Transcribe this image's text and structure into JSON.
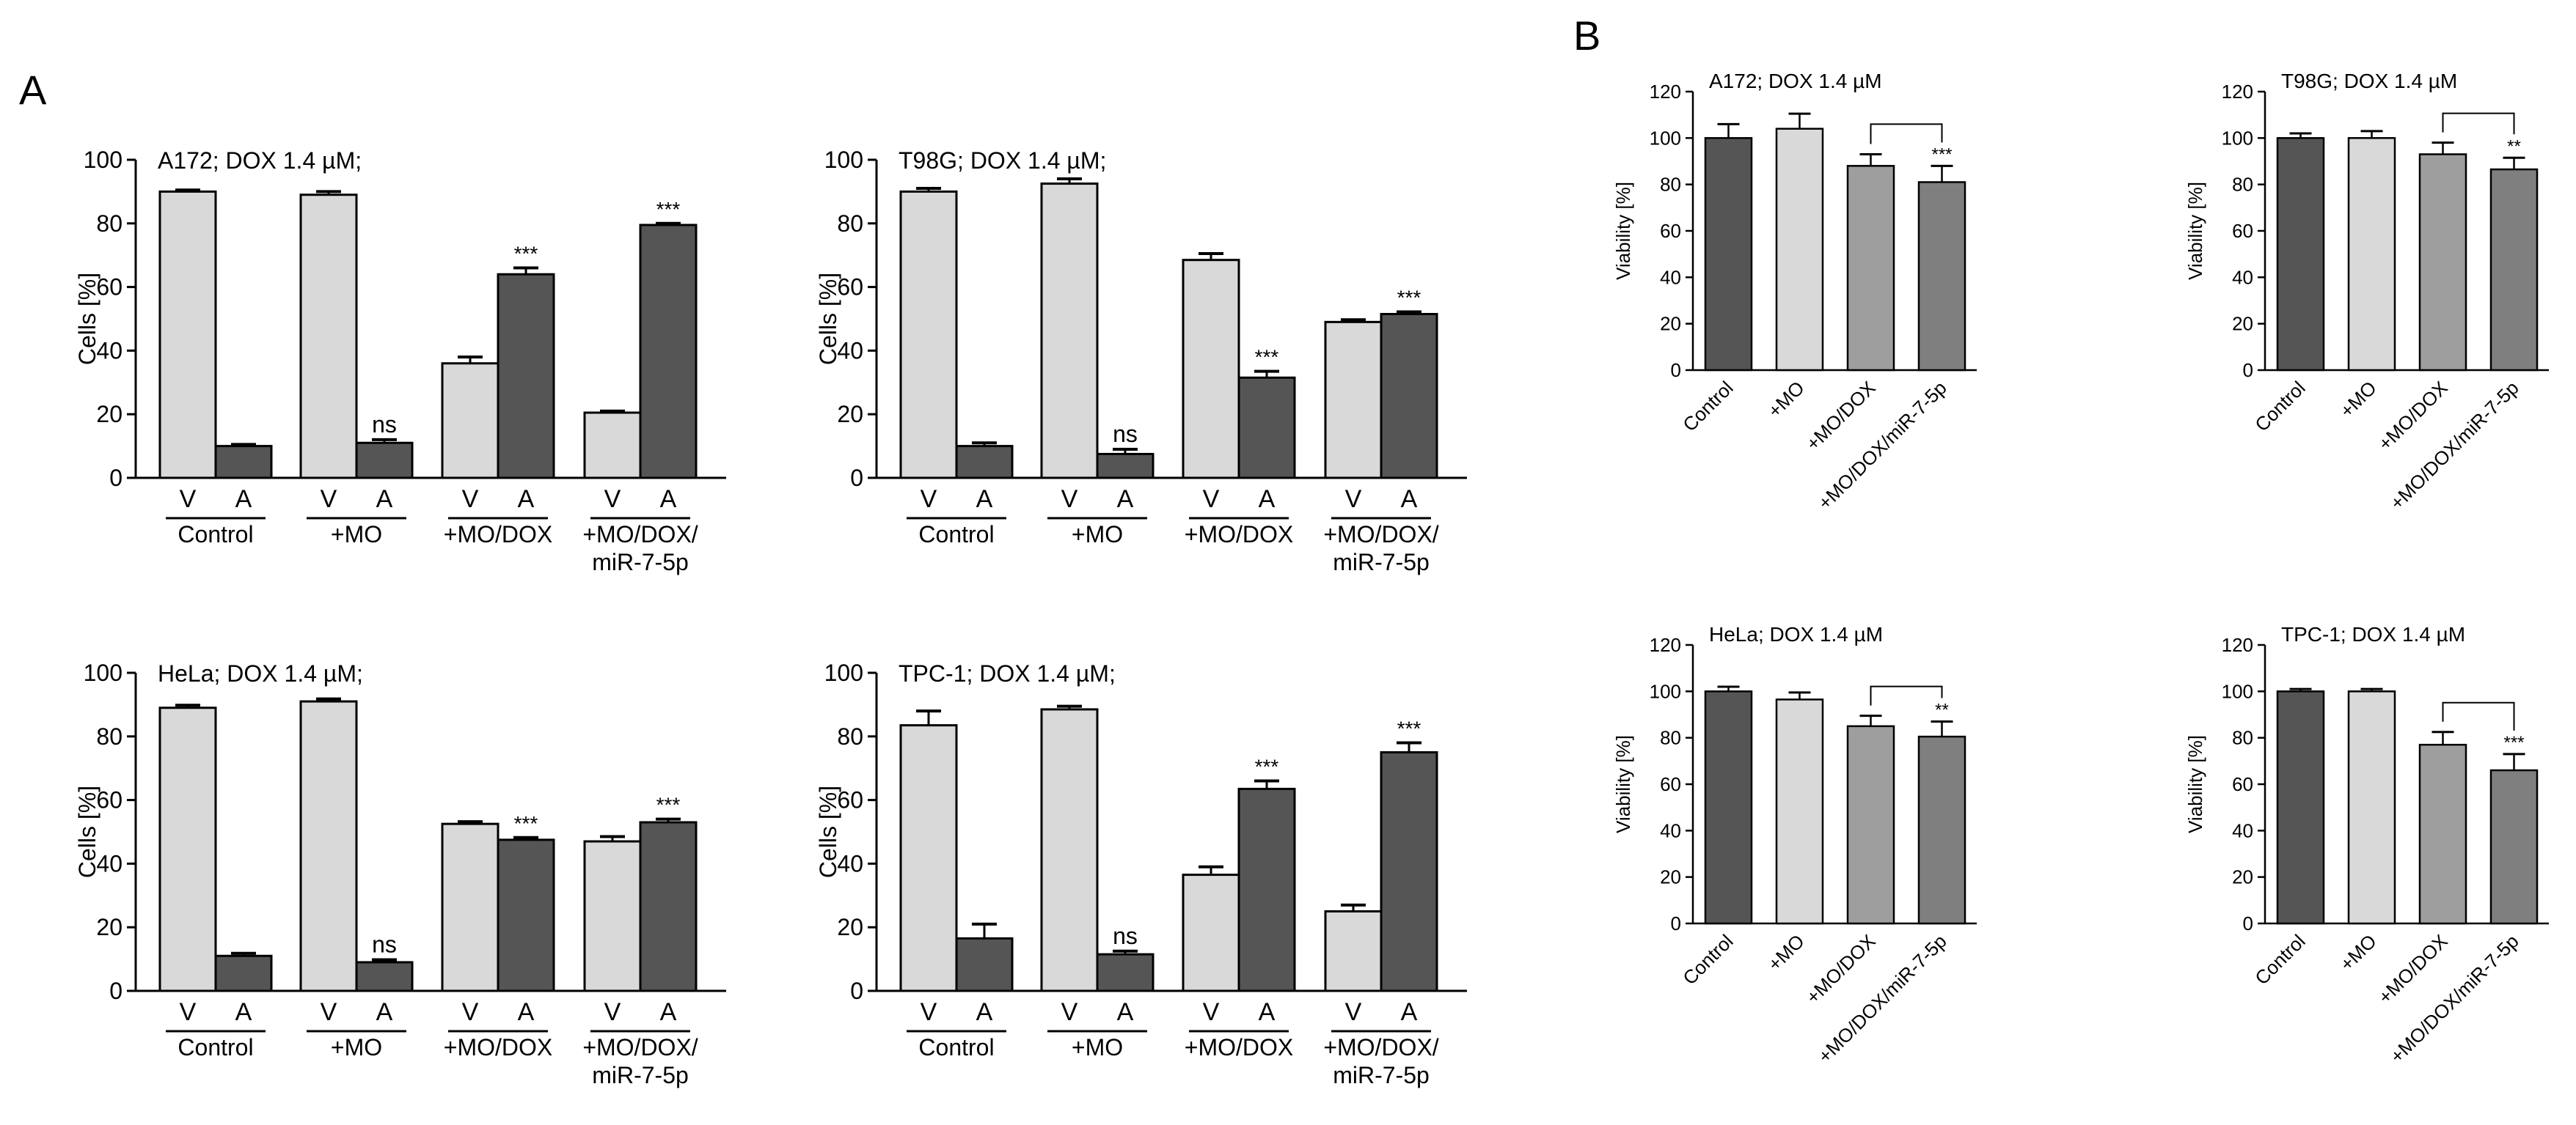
{
  "panel_labels": {
    "A": "A",
    "B": "B"
  },
  "colors": {
    "light": "#d9d9d9",
    "dark": "#555555",
    "viab_control": "#555555",
    "viab_mo": "#d9d9d9",
    "viab_dox": "#9e9e9e",
    "viab_mir": "#7f7f7f"
  },
  "chart_data": [
    {
      "type": "bar",
      "panel": "A",
      "title": "A172; DOX 1.4 µM;",
      "ylabel": "Cells [%]",
      "ylim": [
        0,
        100
      ],
      "yticks": [
        0,
        20,
        40,
        60,
        80,
        100
      ],
      "groups": [
        {
          "label": "Control",
          "bars": [
            {
              "cat": "V",
              "value": 90,
              "err": 0.5,
              "sig": ""
            },
            {
              "cat": "A",
              "value": 10,
              "err": 0.5,
              "sig": ""
            }
          ]
        },
        {
          "label": "+MO",
          "bars": [
            {
              "cat": "V",
              "value": 89,
              "err": 1,
              "sig": ""
            },
            {
              "cat": "A",
              "value": 11,
              "err": 1,
              "sig": "ns"
            }
          ]
        },
        {
          "label": "+MO/DOX",
          "bars": [
            {
              "cat": "V",
              "value": 36,
              "err": 2,
              "sig": ""
            },
            {
              "cat": "A",
              "value": 64,
              "err": 2,
              "sig": "***"
            }
          ]
        },
        {
          "label": "+MO/DOX/ miR-7-5p",
          "bars": [
            {
              "cat": "V",
              "value": 20.5,
              "err": 0.5,
              "sig": ""
            },
            {
              "cat": "A",
              "value": 79.5,
              "err": 0.5,
              "sig": "***"
            }
          ]
        }
      ]
    },
    {
      "type": "bar",
      "panel": "A",
      "title": "T98G; DOX 1.4 µM;",
      "ylabel": "Cells [%]",
      "ylim": [
        0,
        100
      ],
      "yticks": [
        0,
        20,
        40,
        60,
        80,
        100
      ],
      "groups": [
        {
          "label": "Control",
          "bars": [
            {
              "cat": "V",
              "value": 90,
              "err": 1,
              "sig": ""
            },
            {
              "cat": "A",
              "value": 10,
              "err": 1,
              "sig": ""
            }
          ]
        },
        {
          "label": "+MO",
          "bars": [
            {
              "cat": "V",
              "value": 92.5,
              "err": 1.5,
              "sig": ""
            },
            {
              "cat": "A",
              "value": 7.5,
              "err": 1.5,
              "sig": "ns"
            }
          ]
        },
        {
          "label": "+MO/DOX",
          "bars": [
            {
              "cat": "V",
              "value": 68.5,
              "err": 2,
              "sig": ""
            },
            {
              "cat": "A",
              "value": 31.5,
              "err": 2,
              "sig": "***"
            }
          ]
        },
        {
          "label": "+MO/DOX/ miR-7-5p",
          "bars": [
            {
              "cat": "V",
              "value": 49,
              "err": 0.7,
              "sig": ""
            },
            {
              "cat": "A",
              "value": 51.5,
              "err": 0.7,
              "sig": "***"
            }
          ]
        }
      ]
    },
    {
      "type": "bar",
      "panel": "A",
      "title": "HeLa; DOX 1.4 µM;",
      "ylabel": "Cells [%]",
      "ylim": [
        0,
        100
      ],
      "yticks": [
        0,
        20,
        40,
        60,
        80,
        100
      ],
      "groups": [
        {
          "label": "Control",
          "bars": [
            {
              "cat": "V",
              "value": 89,
              "err": 0.8,
              "sig": ""
            },
            {
              "cat": "A",
              "value": 11,
              "err": 0.8,
              "sig": ""
            }
          ]
        },
        {
          "label": "+MO",
          "bars": [
            {
              "cat": "V",
              "value": 91,
              "err": 0.8,
              "sig": ""
            },
            {
              "cat": "A",
              "value": 9,
              "err": 0.8,
              "sig": "ns"
            }
          ]
        },
        {
          "label": "+MO/DOX",
          "bars": [
            {
              "cat": "V",
              "value": 52.5,
              "err": 0.7,
              "sig": ""
            },
            {
              "cat": "A",
              "value": 47.5,
              "err": 0.7,
              "sig": "***"
            }
          ]
        },
        {
          "label": "+MO/DOX/ miR-7-5p",
          "bars": [
            {
              "cat": "V",
              "value": 47,
              "err": 1.5,
              "sig": ""
            },
            {
              "cat": "A",
              "value": 53,
              "err": 1,
              "sig": "***"
            }
          ]
        }
      ]
    },
    {
      "type": "bar",
      "panel": "A",
      "title": "TPC-1; DOX 1.4 µM;",
      "ylabel": "Cells [%]",
      "ylim": [
        0,
        100
      ],
      "yticks": [
        0,
        20,
        40,
        60,
        80,
        100
      ],
      "groups": [
        {
          "label": "Control",
          "bars": [
            {
              "cat": "V",
              "value": 83.5,
              "err": 4.5,
              "sig": ""
            },
            {
              "cat": "A",
              "value": 16.5,
              "err": 4.5,
              "sig": ""
            }
          ]
        },
        {
          "label": "+MO",
          "bars": [
            {
              "cat": "V",
              "value": 88.5,
              "err": 1,
              "sig": ""
            },
            {
              "cat": "A",
              "value": 11.5,
              "err": 1,
              "sig": "ns"
            }
          ]
        },
        {
          "label": "+MO/DOX",
          "bars": [
            {
              "cat": "V",
              "value": 36.5,
              "err": 2.5,
              "sig": ""
            },
            {
              "cat": "A",
              "value": 63.5,
              "err": 2.5,
              "sig": "***"
            }
          ]
        },
        {
          "label": "+MO/DOX/ miR-7-5p",
          "bars": [
            {
              "cat": "V",
              "value": 25,
              "err": 2,
              "sig": ""
            },
            {
              "cat": "A",
              "value": 75,
              "err": 3,
              "sig": "***"
            }
          ]
        }
      ]
    },
    {
      "type": "bar",
      "panel": "B",
      "title": "A172; DOX 1.4 µM",
      "ylabel": "Viability [%]",
      "ylim": [
        0,
        120
      ],
      "yticks": [
        0,
        20,
        40,
        60,
        80,
        100,
        120
      ],
      "categories": [
        "Control",
        "+MO",
        "+MO/DOX",
        "+MO/DOX/miR-7-5p"
      ],
      "values": [
        100,
        104,
        88,
        81
      ],
      "errors": [
        6,
        6.5,
        5,
        7
      ],
      "significance": {
        "from": 2,
        "to": 3,
        "label": "***"
      }
    },
    {
      "type": "bar",
      "panel": "B",
      "title": "T98G; DOX 1.4 µM",
      "ylabel": "Viability [%]",
      "ylim": [
        0,
        120
      ],
      "yticks": [
        0,
        20,
        40,
        60,
        80,
        100,
        120
      ],
      "categories": [
        "Control",
        "+MO",
        "+MO/DOX",
        "+MO/DOX/miR-7-5p"
      ],
      "values": [
        100,
        100,
        93,
        86.5
      ],
      "errors": [
        2,
        3,
        5,
        5
      ],
      "significance": {
        "from": 2,
        "to": 3,
        "label": "**"
      }
    },
    {
      "type": "bar",
      "panel": "B",
      "title": "HeLa; DOX 1.4 µM",
      "ylabel": "Viability [%]",
      "ylim": [
        0,
        120
      ],
      "yticks": [
        0,
        20,
        40,
        60,
        80,
        100,
        120
      ],
      "categories": [
        "Control",
        "+MO",
        "+MO/DOX",
        "+MO/DOX/miR-7-5p"
      ],
      "values": [
        100,
        96.5,
        85,
        80.5
      ],
      "errors": [
        2,
        3,
        4.5,
        6.5
      ],
      "significance": {
        "from": 2,
        "to": 3,
        "label": "**"
      }
    },
    {
      "type": "bar",
      "panel": "B",
      "title": "TPC-1; DOX 1.4 µM",
      "ylabel": "Viability [%]",
      "ylim": [
        0,
        120
      ],
      "yticks": [
        0,
        20,
        40,
        60,
        80,
        100,
        120
      ],
      "categories": [
        "Control",
        "+MO",
        "+MO/DOX",
        "+MO/DOX/miR-7-5p"
      ],
      "values": [
        100,
        100,
        77,
        66
      ],
      "errors": [
        1,
        1,
        5.5,
        7
      ],
      "significance": {
        "from": 2,
        "to": 3,
        "label": "***"
      }
    }
  ]
}
